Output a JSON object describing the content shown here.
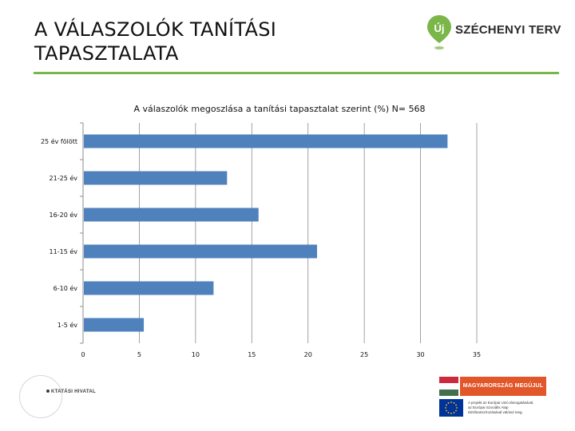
{
  "slide": {
    "title_lines": [
      "A VÁLASZOLÓK TANÍTÁSI",
      "TAPASZTALATA"
    ],
    "accent_color": "#7ab648"
  },
  "brand": {
    "mark_letter": "Új",
    "name": "SZÉCHENYI TERV",
    "mark_color": "#7ab648"
  },
  "chart_data": {
    "type": "bar",
    "orientation": "horizontal",
    "title": "A válaszolók  megoszlása a tanítási tapasztalat szerint (%) N= 568",
    "categories": [
      "25 év fölött",
      "21-25 év",
      "16-20 év",
      "11-15 év",
      "6-10 év",
      "1-5 év"
    ],
    "values": [
      32.4,
      12.8,
      15.6,
      20.8,
      11.6,
      5.4
    ],
    "xlim": [
      0,
      35
    ],
    "xticks": [
      0,
      5,
      10,
      15,
      20,
      25,
      30,
      35
    ],
    "xlabel": "",
    "ylabel": "",
    "grid": true,
    "legend": "none",
    "bar_color": "#4f81bd"
  },
  "footer": {
    "org_name": "KTATÁSI HIVATAL",
    "banner_label": "MAGYARORSZÁG MEGÚJUL",
    "eu_lines": [
      "A projekt az Európai Unió támogatásával,",
      "az Európai Szociális Alap",
      "társfinanszírozásával valósul meg."
    ],
    "colors": {
      "banner": "#e2572a",
      "flag_red": "#cd2a3e",
      "flag_white": "#ffffff",
      "flag_green": "#436f4d",
      "eu_blue": "#003399",
      "eu_star": "#ffcc00"
    }
  }
}
